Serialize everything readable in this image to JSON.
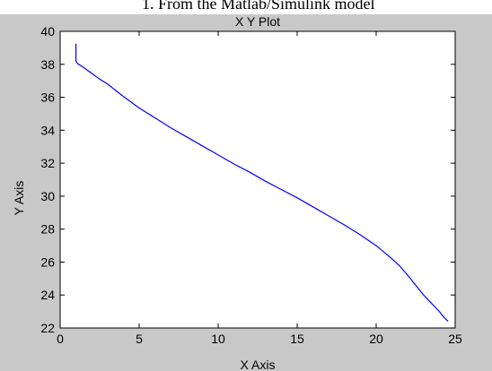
{
  "page_header_fragment": "1. From the Matlab/Simulink model",
  "chart_data": {
    "type": "line",
    "title": "X Y Plot",
    "xlabel": "X Axis",
    "ylabel": "Y Axis",
    "xlim": [
      0,
      25
    ],
    "ylim": [
      22,
      40
    ],
    "xticks": [
      0,
      5,
      10,
      15,
      20,
      25
    ],
    "yticks": [
      22,
      24,
      26,
      28,
      30,
      32,
      34,
      36,
      38,
      40
    ],
    "grid": false,
    "series": [
      {
        "color": "#0000ff",
        "x": [
          1.0,
          1.0,
          1.0,
          1.1,
          1.5,
          2.0,
          2.5,
          3.0,
          4.0,
          5.0,
          6.0,
          7.0,
          8.0,
          9.0,
          10.0,
          11.0,
          12.0,
          13.0,
          14.0,
          15.0,
          16.0,
          17.0,
          18.0,
          19.0,
          20.0,
          21.0,
          21.5,
          22.0,
          22.5,
          23.0,
          23.5,
          24.0,
          24.2,
          24.4,
          24.55
        ],
        "y": [
          39.25,
          38.75,
          38.2,
          38.05,
          37.8,
          37.45,
          37.1,
          36.8,
          36.05,
          35.35,
          34.75,
          34.15,
          33.6,
          33.05,
          32.5,
          31.95,
          31.45,
          30.9,
          30.4,
          29.9,
          29.35,
          28.8,
          28.25,
          27.65,
          27.0,
          26.2,
          25.75,
          25.2,
          24.6,
          24.0,
          23.5,
          23.0,
          22.75,
          22.55,
          22.4
        ]
      }
    ]
  }
}
